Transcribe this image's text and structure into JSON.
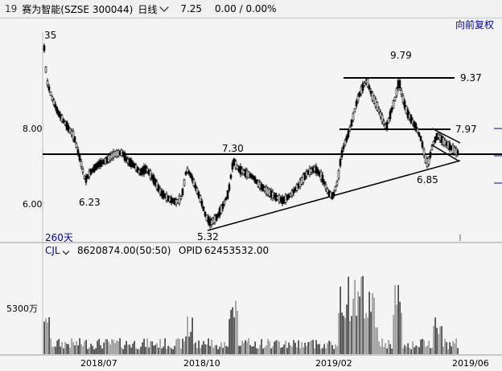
{
  "header": {
    "index_num": "19",
    "stock_name": "赛为智能(SZSE 300044)",
    "period": "日线",
    "last_price": "7.25",
    "change": "0.00 / 0.00%"
  },
  "adjust_button": "向前复权",
  "price_panel": {
    "y_axis_labels": [
      "8.00",
      "6.00"
    ],
    "annotations": [
      "35",
      "9.79",
      "9.37",
      "7.97",
      "7.30",
      "6.85",
      "6.23",
      "5.32"
    ],
    "period_label": "260天"
  },
  "volume_panel": {
    "indicator": "CJL",
    "cjl_value": "8620874.00(50:50)",
    "opid_label": "OPID",
    "opid_value": "62453532.00",
    "y_axis_label": "5300万"
  },
  "x_axis_labels": [
    "2018/07",
    "2018/10",
    "2019/02",
    "2019/06"
  ],
  "colors": {
    "candle": "#000000",
    "line": "#000000",
    "label_blue": "#0000a0",
    "tick_blue": "#0000a0"
  }
}
